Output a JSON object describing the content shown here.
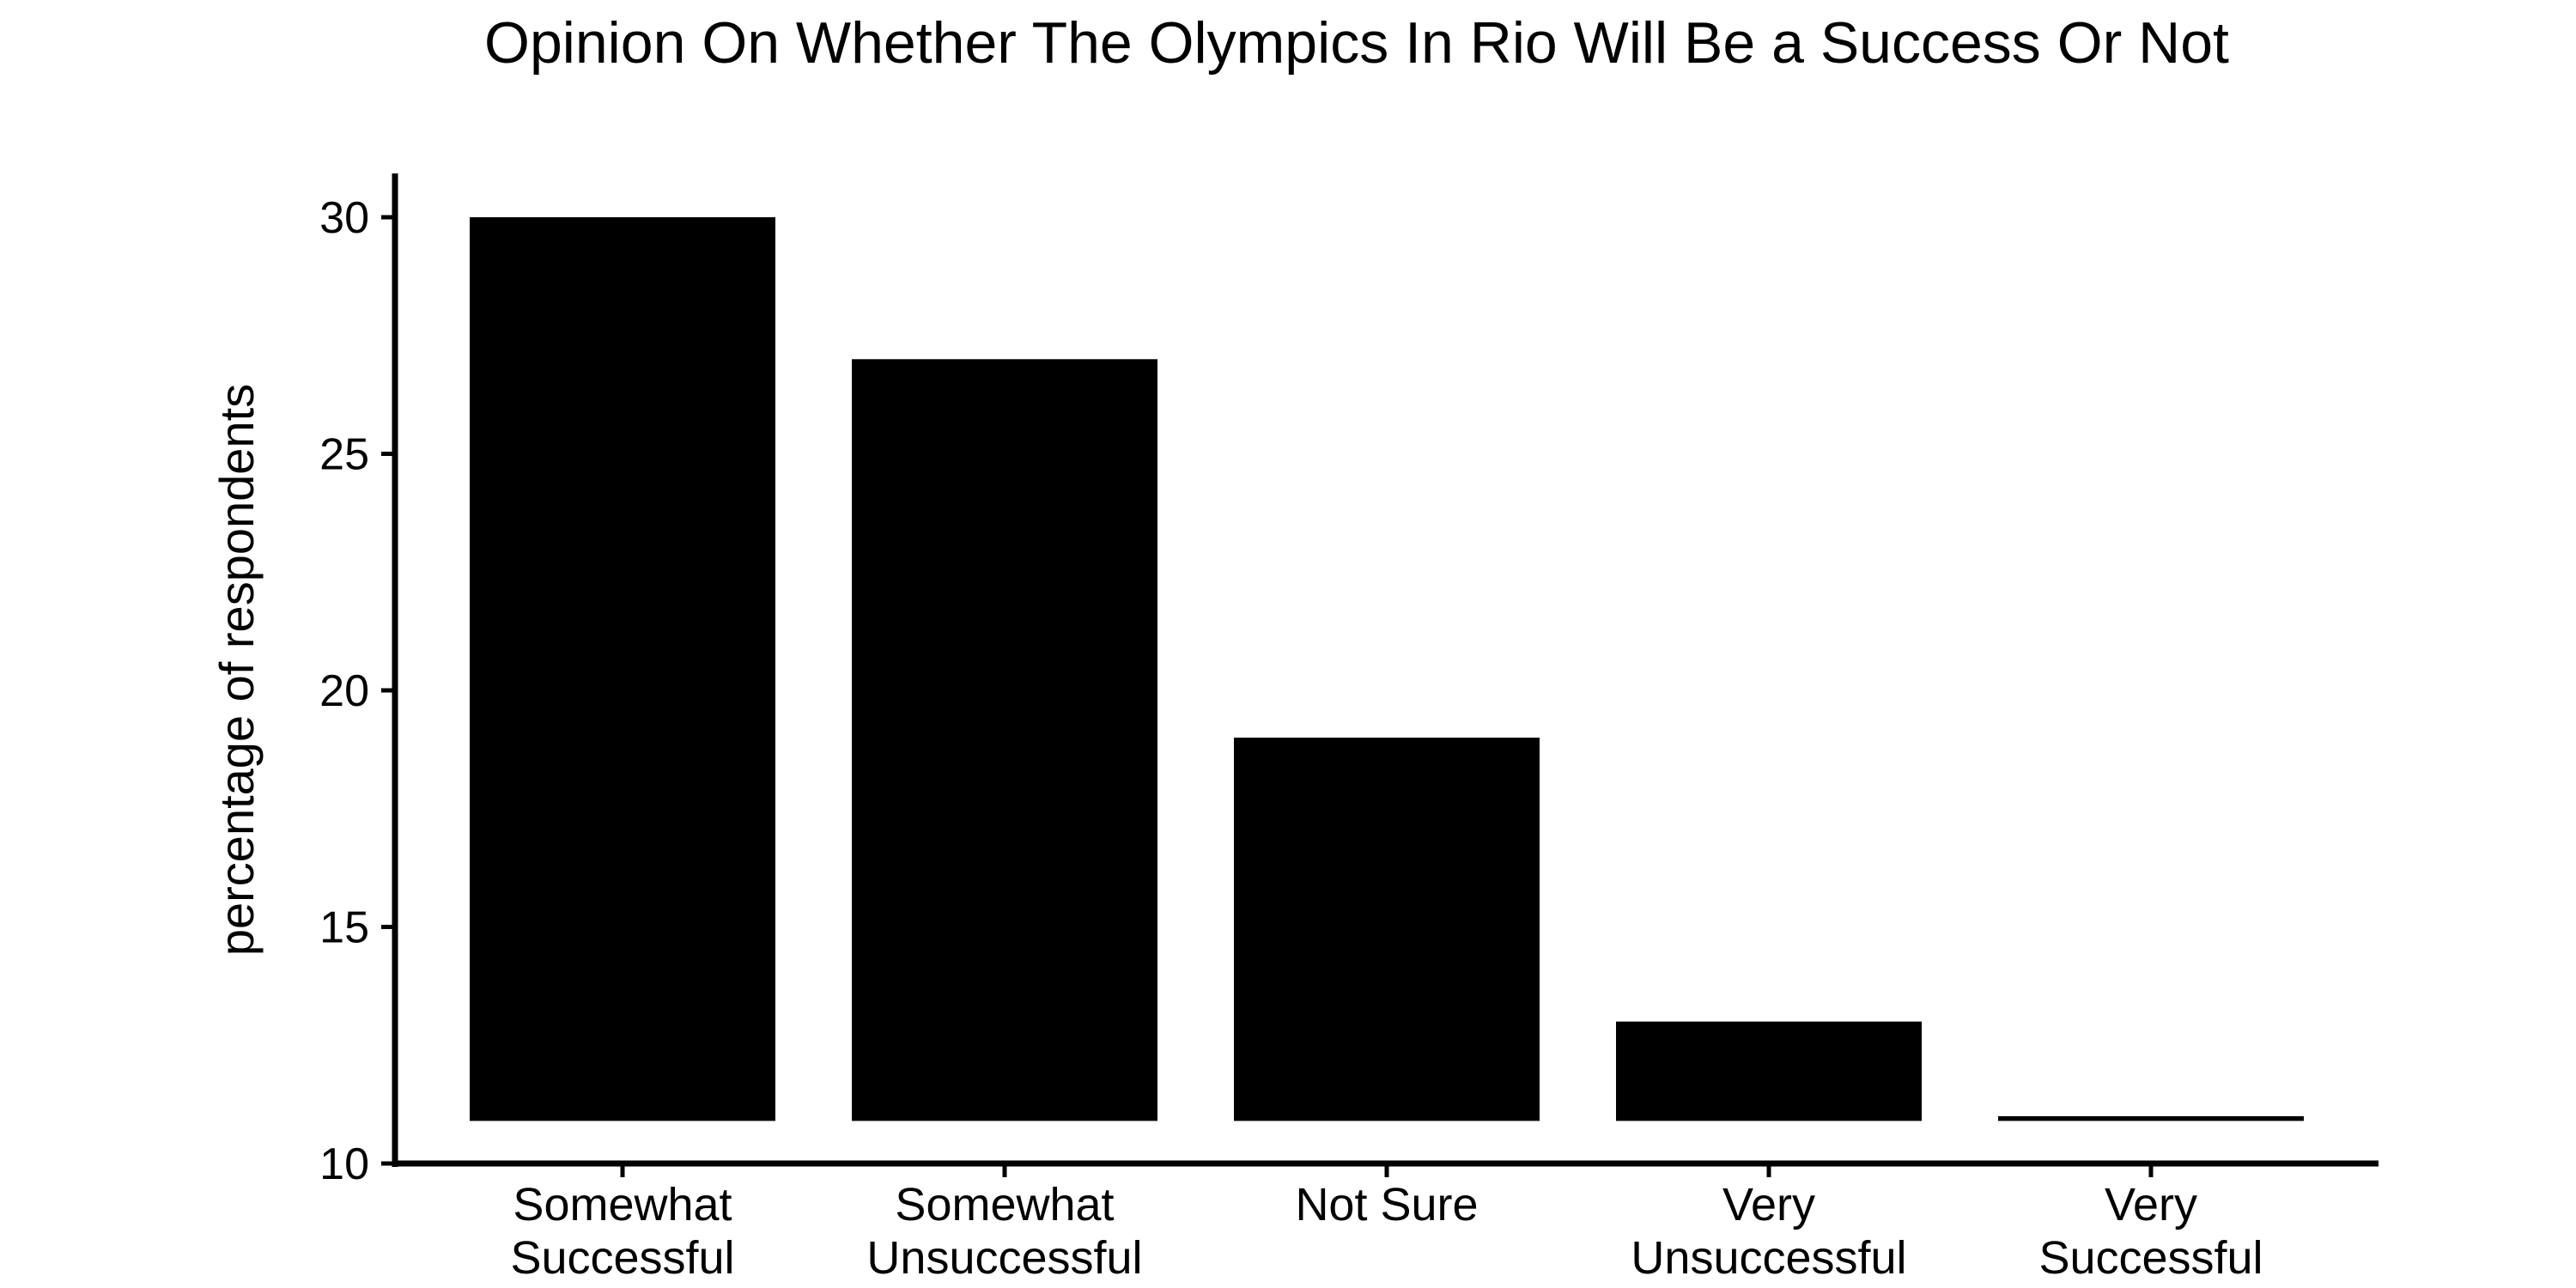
{
  "chart_data": {
    "type": "bar",
    "title": "Opinion On Whether The Olympics In Rio Will Be a Success Or Not",
    "xlabel": "",
    "ylabel": "percentage of respondents",
    "categories": [
      [
        "Somewhat",
        "Successful"
      ],
      [
        "Somewhat",
        "Unsuccessful"
      ],
      [
        "Not Sure"
      ],
      [
        "Very",
        "Unsuccessful"
      ],
      [
        "Very",
        "Successful"
      ]
    ],
    "values": [
      30,
      27,
      19,
      13,
      11
    ],
    "baseline": 10.9,
    "ylim": [
      10,
      31
    ],
    "yticks": [
      10,
      15,
      20,
      25,
      30
    ],
    "grid": false,
    "legend": "none",
    "bar_color": "#000000",
    "axis_color": "#000000"
  }
}
